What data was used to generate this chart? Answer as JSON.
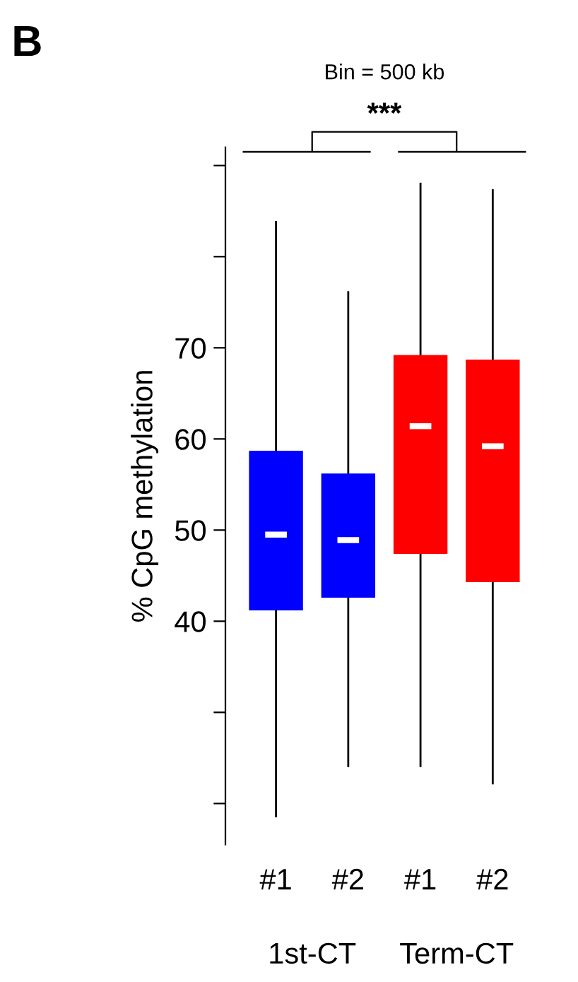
{
  "chart_data": {
    "type": "box",
    "ylabel": "% CpG methylation",
    "categories": [
      "#1",
      "#2",
      "#1",
      "#2"
    ],
    "colors": [
      "#0000ff",
      "#0000ff",
      "#ff0000",
      "#ff0000"
    ],
    "boxes": [
      {
        "low": 18.6,
        "q1": 41.3,
        "median": 49.5,
        "q3": 58.6,
        "high": 83.8
      },
      {
        "low": 24.1,
        "q1": 42.7,
        "median": 48.9,
        "q3": 56.1,
        "high": 76.1
      },
      {
        "low": 24.1,
        "q1": 47.5,
        "median": 61.4,
        "q3": 69.1,
        "high": 88
      },
      {
        "low": 22.2,
        "q1": 44.4,
        "median": 59.2,
        "q3": 68.6,
        "high": 87.3
      }
    ],
    "ylim": [
      15.5,
      92
    ],
    "yticks": [
      {
        "value": 20,
        "label": null
      },
      {
        "value": 30,
        "label": null
      },
      40,
      50,
      60,
      70,
      {
        "value": 80,
        "label": null
      },
      {
        "value": 90,
        "label": null
      }
    ],
    "annotations": [
      "B",
      "Bin = 500 kb",
      "***",
      "1st-CT",
      "Term-CT"
    ],
    "grid": false,
    "legend": false
  }
}
